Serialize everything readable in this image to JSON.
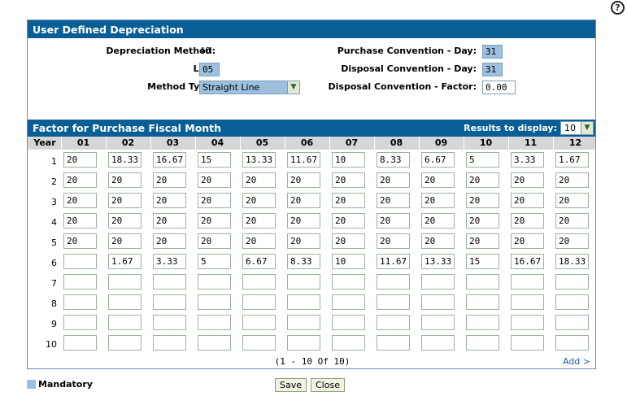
{
  "help": {
    "icon": "help-icon",
    "glyph": "?"
  },
  "title": "User Defined Depreciation",
  "form": {
    "depreciation_method_label": "Depreciation Method:",
    "depreciation_method_value": "40",
    "life_label": "Life:",
    "life_value": "05",
    "method_type_label": "Method Type:",
    "method_type_value": "Straight Line",
    "purchase_day_label": "Purchase Convention - Day:",
    "purchase_day_value": "31",
    "disposal_day_label": "Disposal Convention - Day:",
    "disposal_day_value": "31",
    "disposal_factor_label": "Disposal Convention - Factor:",
    "disposal_factor_value": "0.00"
  },
  "factor": {
    "title": "Factor for Purchase Fiscal Month",
    "results_label": "Results to display:",
    "results_value": "10"
  },
  "grid": {
    "year_header": "Year",
    "months": [
      "01",
      "02",
      "03",
      "04",
      "05",
      "06",
      "07",
      "08",
      "09",
      "10",
      "11",
      "12"
    ],
    "rows": [
      {
        "year": "1",
        "values": [
          "20",
          "18.33",
          "16.67",
          "15",
          "13.33",
          "11.67",
          "10",
          "8.33",
          "6.67",
          "5",
          "3.33",
          "1.67"
        ]
      },
      {
        "year": "2",
        "values": [
          "20",
          "20",
          "20",
          "20",
          "20",
          "20",
          "20",
          "20",
          "20",
          "20",
          "20",
          "20"
        ]
      },
      {
        "year": "3",
        "values": [
          "20",
          "20",
          "20",
          "20",
          "20",
          "20",
          "20",
          "20",
          "20",
          "20",
          "20",
          "20"
        ]
      },
      {
        "year": "4",
        "values": [
          "20",
          "20",
          "20",
          "20",
          "20",
          "20",
          "20",
          "20",
          "20",
          "20",
          "20",
          "20"
        ]
      },
      {
        "year": "5",
        "values": [
          "20",
          "20",
          "20",
          "20",
          "20",
          "20",
          "20",
          "20",
          "20",
          "20",
          "20",
          "20"
        ]
      },
      {
        "year": "6",
        "values": [
          "",
          "1.67",
          "3.33",
          "5",
          "6.67",
          "8.33",
          "10",
          "11.67",
          "13.33",
          "15",
          "16.67",
          "18.33"
        ]
      },
      {
        "year": "7",
        "values": [
          "",
          "",
          "",
          "",
          "",
          "",
          "",
          "",
          "",
          "",
          "",
          ""
        ]
      },
      {
        "year": "8",
        "values": [
          "",
          "",
          "",
          "",
          "",
          "",
          "",
          "",
          "",
          "",
          "",
          ""
        ]
      },
      {
        "year": "9",
        "values": [
          "",
          "",
          "",
          "",
          "",
          "",
          "",
          "",
          "",
          "",
          "",
          ""
        ]
      },
      {
        "year": "10",
        "values": [
          "",
          "",
          "",
          "",
          "",
          "",
          "",
          "",
          "",
          "",
          "",
          ""
        ]
      }
    ]
  },
  "pager": {
    "text": "(1 - 10 Of 10)",
    "add_label": "Add >"
  },
  "legend": {
    "mandatory_label": "Mandatory",
    "mandatory_color": "#9cc0dd"
  },
  "buttons": {
    "save": "Save",
    "close": "Close"
  },
  "colors": {
    "header_bar": "#0a5e96",
    "grid_header": "#d6d6d6",
    "link": "#1f5da8"
  }
}
